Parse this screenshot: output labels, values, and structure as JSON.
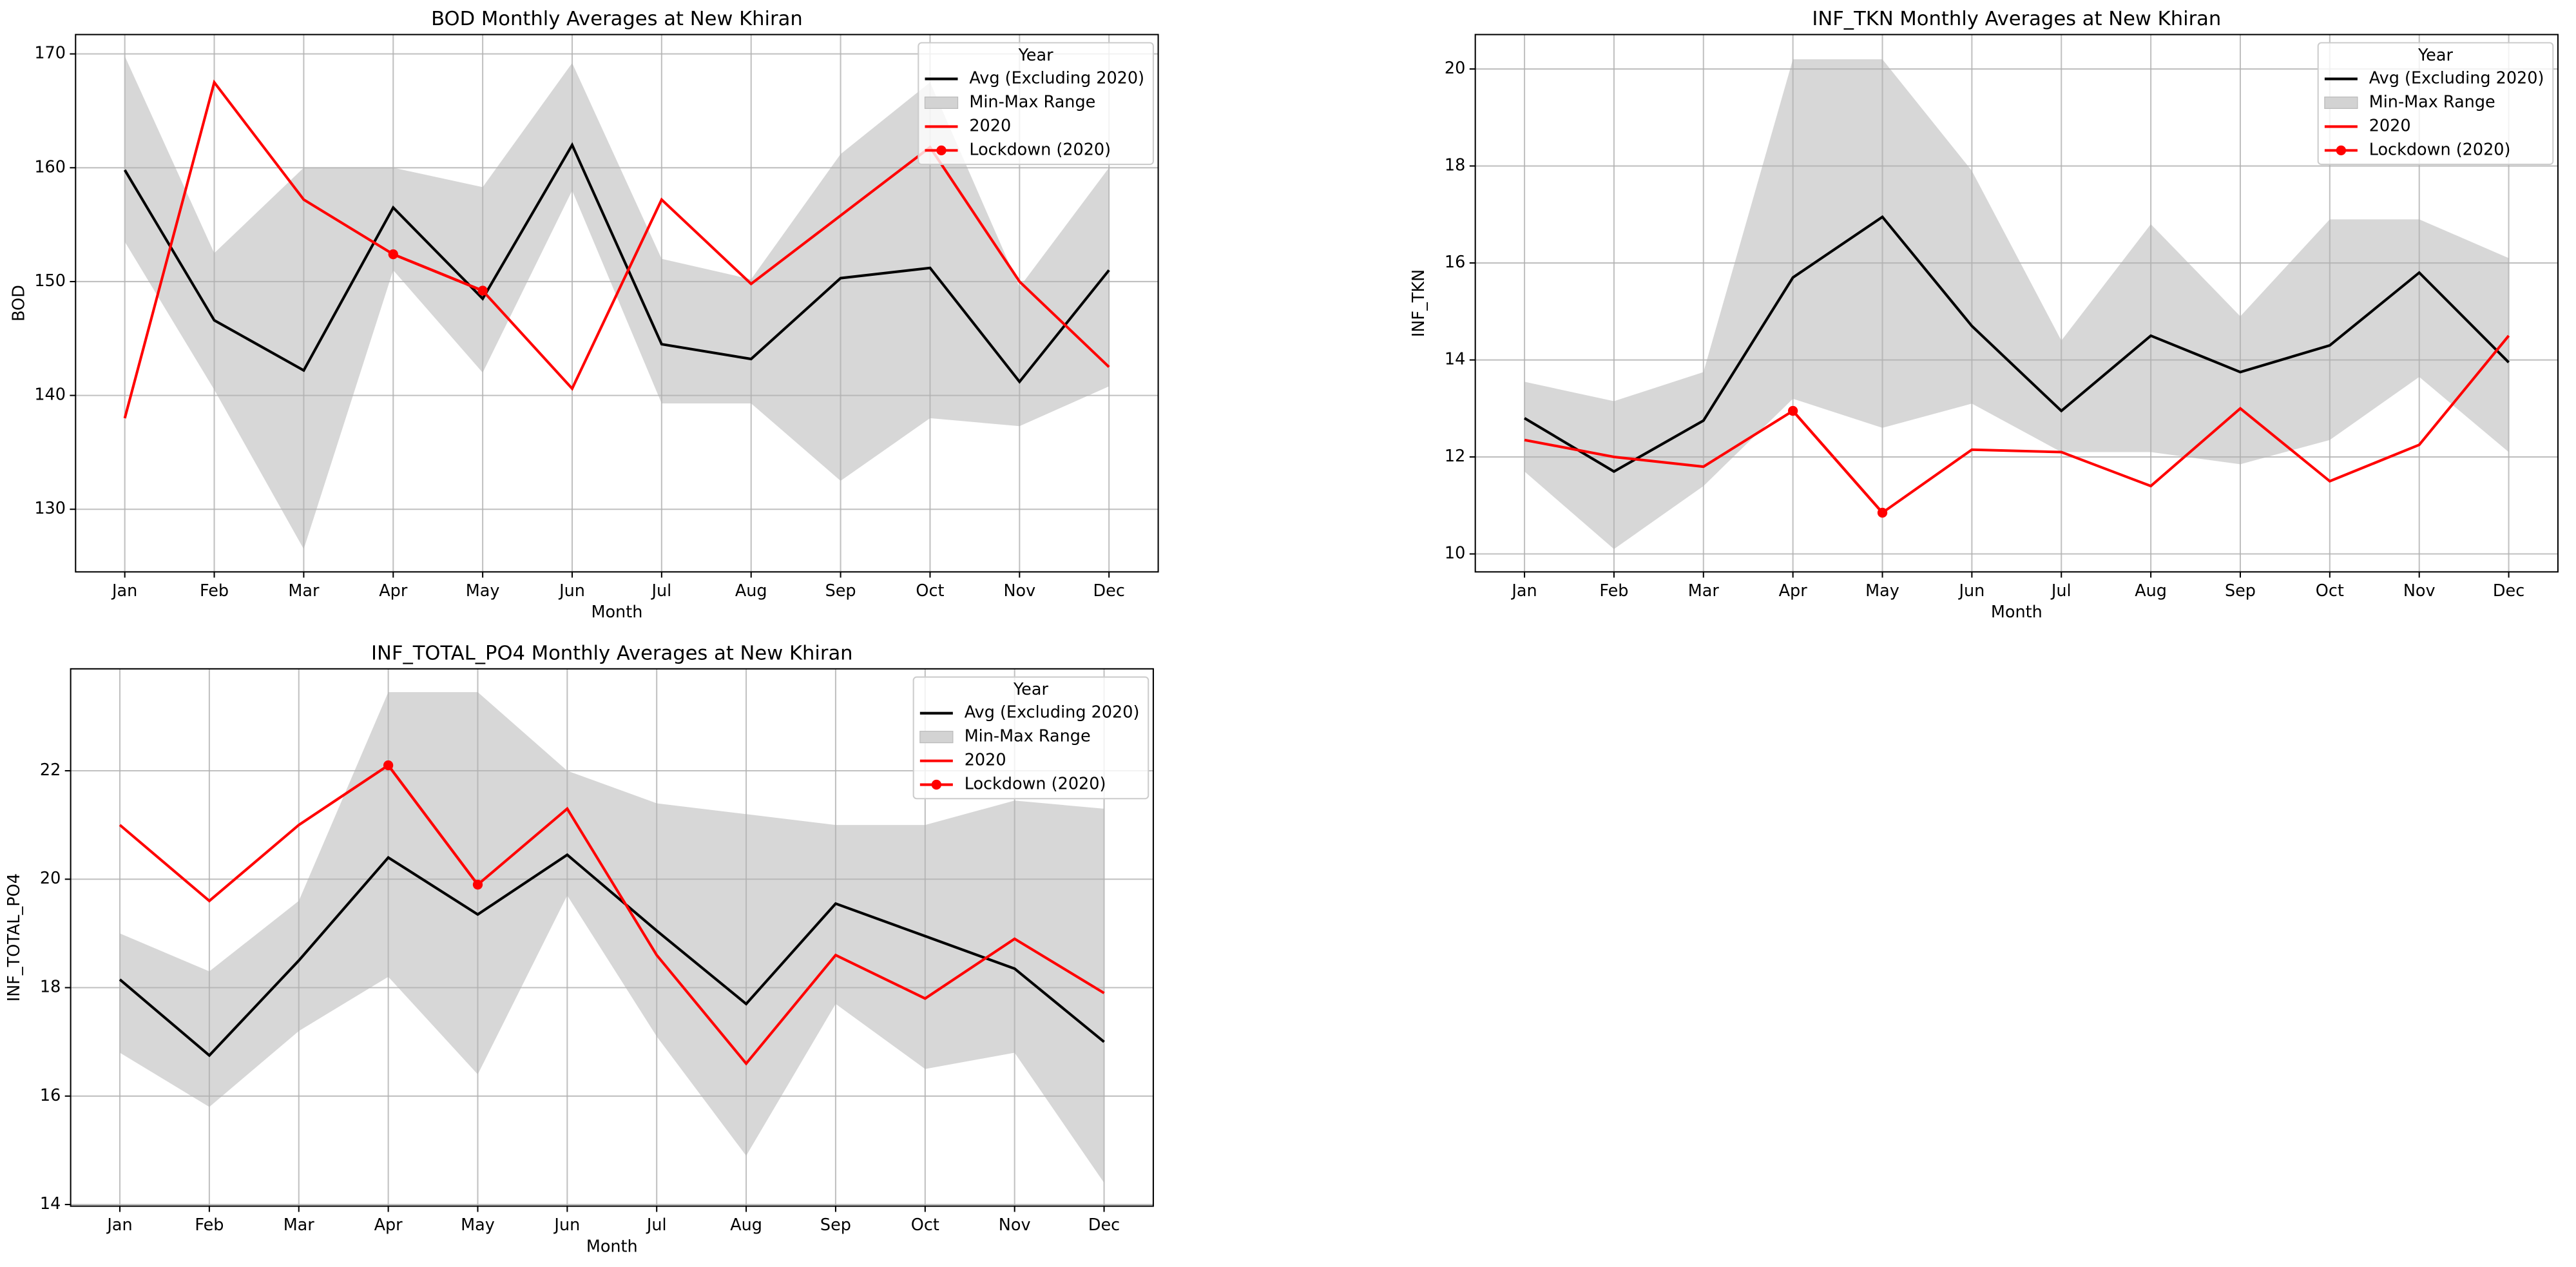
{
  "chart_data": [
    {
      "type": "line",
      "title": "BOD Monthly Averages at New Khiran",
      "xlabel": "Month",
      "ylabel": "BOD",
      "categories": [
        "Jan",
        "Feb",
        "Mar",
        "Apr",
        "May",
        "Jun",
        "Jul",
        "Aug",
        "Sep",
        "Oct",
        "Nov",
        "Dec"
      ],
      "series": [
        {
          "name": "Avg (Excluding 2020)",
          "color": "#000000",
          "values": [
            159.8,
            146.6,
            142.2,
            156.5,
            148.5,
            162,
            144.5,
            143.2,
            150.3,
            151.2,
            141.2,
            151
          ]
        },
        {
          "name": "Min-Max Range",
          "color": "#d3d3d3",
          "lower": [
            153.5,
            140.5,
            126.5,
            151,
            142,
            158,
            139.3,
            139.3,
            132.5,
            138,
            137.3,
            140.8
          ],
          "upper": [
            169.8,
            152.5,
            160,
            160,
            158.3,
            169.2,
            152,
            150.2,
            161.2,
            167.5,
            149.5,
            160
          ]
        },
        {
          "name": "2020",
          "color": "#ff0000",
          "values": [
            138,
            167.5,
            157.2,
            152.4,
            149.2,
            140.6,
            157.2,
            149.8,
            155.8,
            161.8,
            150,
            142.5
          ]
        },
        {
          "name": "Lockdown (2020)",
          "color": "#ff0000",
          "marker": "o",
          "values": [
            null,
            null,
            null,
            152.4,
            149.2,
            null,
            null,
            null,
            null,
            null,
            null,
            null
          ]
        }
      ],
      "ylim": [
        124.5,
        171.7
      ],
      "yticks": [
        130,
        140,
        150,
        160,
        170
      ],
      "grid": true,
      "legend": {
        "title": "Year",
        "loc": "upper right"
      }
    },
    {
      "type": "line",
      "title": "INF_TKN Monthly Averages at New Khiran",
      "xlabel": "Month",
      "ylabel": "INF_TKN",
      "categories": [
        "Jan",
        "Feb",
        "Mar",
        "Apr",
        "May",
        "Jun",
        "Jul",
        "Aug",
        "Sep",
        "Oct",
        "Nov",
        "Dec"
      ],
      "series": [
        {
          "name": "Avg (Excluding 2020)",
          "color": "#000000",
          "values": [
            12.8,
            11.7,
            12.75,
            15.7,
            16.95,
            14.7,
            12.95,
            14.5,
            13.75,
            14.3,
            15.8,
            13.95
          ]
        },
        {
          "name": "Min-Max Range",
          "color": "#d3d3d3",
          "lower": [
            11.7,
            10.1,
            11.4,
            13.2,
            12.6,
            13.1,
            12.1,
            12.1,
            11.85,
            12.35,
            13.65,
            12.1
          ],
          "upper": [
            13.55,
            13.15,
            13.75,
            20.2,
            20.2,
            17.9,
            14.4,
            16.8,
            14.9,
            16.9,
            16.9,
            16.1
          ]
        },
        {
          "name": "2020",
          "color": "#ff0000",
          "values": [
            12.35,
            12.0,
            11.8,
            12.95,
            10.85,
            12.15,
            12.1,
            11.4,
            13.0,
            11.5,
            12.25,
            14.5
          ]
        },
        {
          "name": "Lockdown (2020)",
          "color": "#ff0000",
          "marker": "o",
          "values": [
            null,
            null,
            null,
            12.95,
            10.85,
            null,
            null,
            null,
            null,
            null,
            null,
            null
          ]
        }
      ],
      "ylim": [
        9.63,
        20.71
      ],
      "yticks": [
        10,
        12,
        14,
        16,
        18,
        20
      ],
      "grid": true,
      "legend": {
        "title": "Year",
        "loc": "upper right"
      }
    },
    {
      "type": "line",
      "title": "INF_TOTAL_PO4 Monthly Averages at New Khiran",
      "xlabel": "Month",
      "ylabel": "INF_TOTAL_PO4",
      "categories": [
        "Jan",
        "Feb",
        "Mar",
        "Apr",
        "May",
        "Jun",
        "Jul",
        "Aug",
        "Sep",
        "Oct",
        "Nov",
        "Dec"
      ],
      "series": [
        {
          "name": "Avg (Excluding 2020)",
          "color": "#000000",
          "values": [
            18.15,
            16.75,
            18.5,
            20.4,
            19.35,
            20.45,
            19.05,
            17.7,
            19.55,
            18.95,
            18.35,
            17.0
          ]
        },
        {
          "name": "Min-Max Range",
          "color": "#d3d3d3",
          "lower": [
            16.8,
            15.8,
            17.2,
            18.2,
            16.4,
            19.7,
            17.1,
            14.9,
            17.7,
            16.5,
            16.8,
            14.4
          ],
          "upper": [
            19.0,
            18.3,
            19.6,
            23.45,
            23.45,
            22.0,
            21.4,
            21.2,
            21.0,
            21.0,
            21.45,
            21.3
          ]
        },
        {
          "name": "2020",
          "color": "#ff0000",
          "values": [
            21.0,
            19.6,
            21.0,
            22.1,
            19.9,
            21.3,
            18.6,
            16.6,
            18.6,
            17.8,
            18.9,
            17.9
          ]
        },
        {
          "name": "Lockdown (2020)",
          "color": "#ff0000",
          "marker": "o",
          "values": [
            null,
            null,
            null,
            22.1,
            19.9,
            null,
            null,
            null,
            null,
            null,
            null,
            null
          ]
        }
      ],
      "ylim": [
        13.97,
        23.88
      ],
      "yticks": [
        14,
        16,
        18,
        20,
        22
      ],
      "grid": true,
      "legend": {
        "title": "Year",
        "loc": "upper right"
      }
    }
  ]
}
